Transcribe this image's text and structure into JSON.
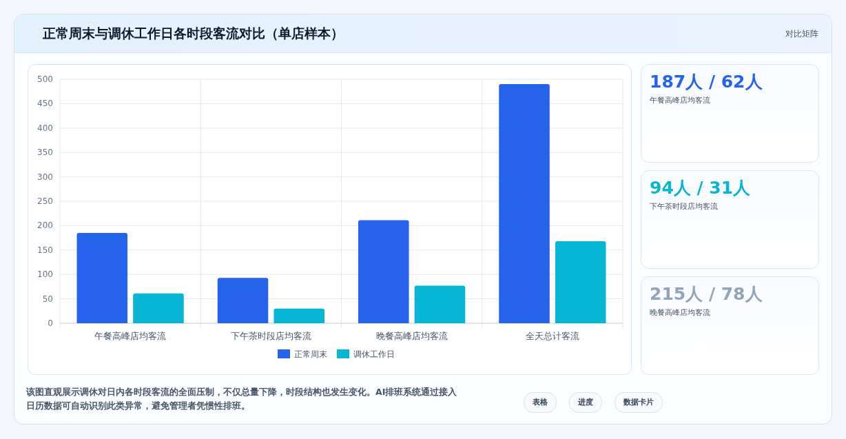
{
  "chart_data": {
    "type": "bar",
    "title": "正常周末与调休工作日各时段客流对比（单店样本）",
    "categories": [
      "午餐高峰店均客流",
      "下午茶时段店均客流",
      "晚餐高峰店均客流",
      "全天总计客流"
    ],
    "series": [
      {
        "name": "正常周末",
        "color": "#2563eb",
        "values": [
          185,
          93,
          211,
          490
        ]
      },
      {
        "name": "调休工作日",
        "color": "#06b6d4",
        "values": [
          61,
          30,
          77,
          168
        ]
      }
    ],
    "ylim": [
      0,
      500
    ],
    "yticks": [
      0,
      50,
      100,
      150,
      200,
      250,
      300,
      350,
      400,
      450,
      500
    ],
    "grid": true,
    "legend": "bottom",
    "annotations": [
      "对比矩阵",
      "187人 / 62人",
      "午餐高峰店均客流",
      "94人 / 31人",
      "下午茶时段店均客流",
      "215人 / 78人",
      "晚餐高峰店均客流",
      "该图直观展示调休对日内各时段客流的全面压制，不仅总量下降，时段结构也发生变化。AI排班系统通过接入日历数据可自动识别此类异常，避免管理者凭惯性排班。",
      "表格",
      "进度",
      "数据卡片"
    ]
  }
}
